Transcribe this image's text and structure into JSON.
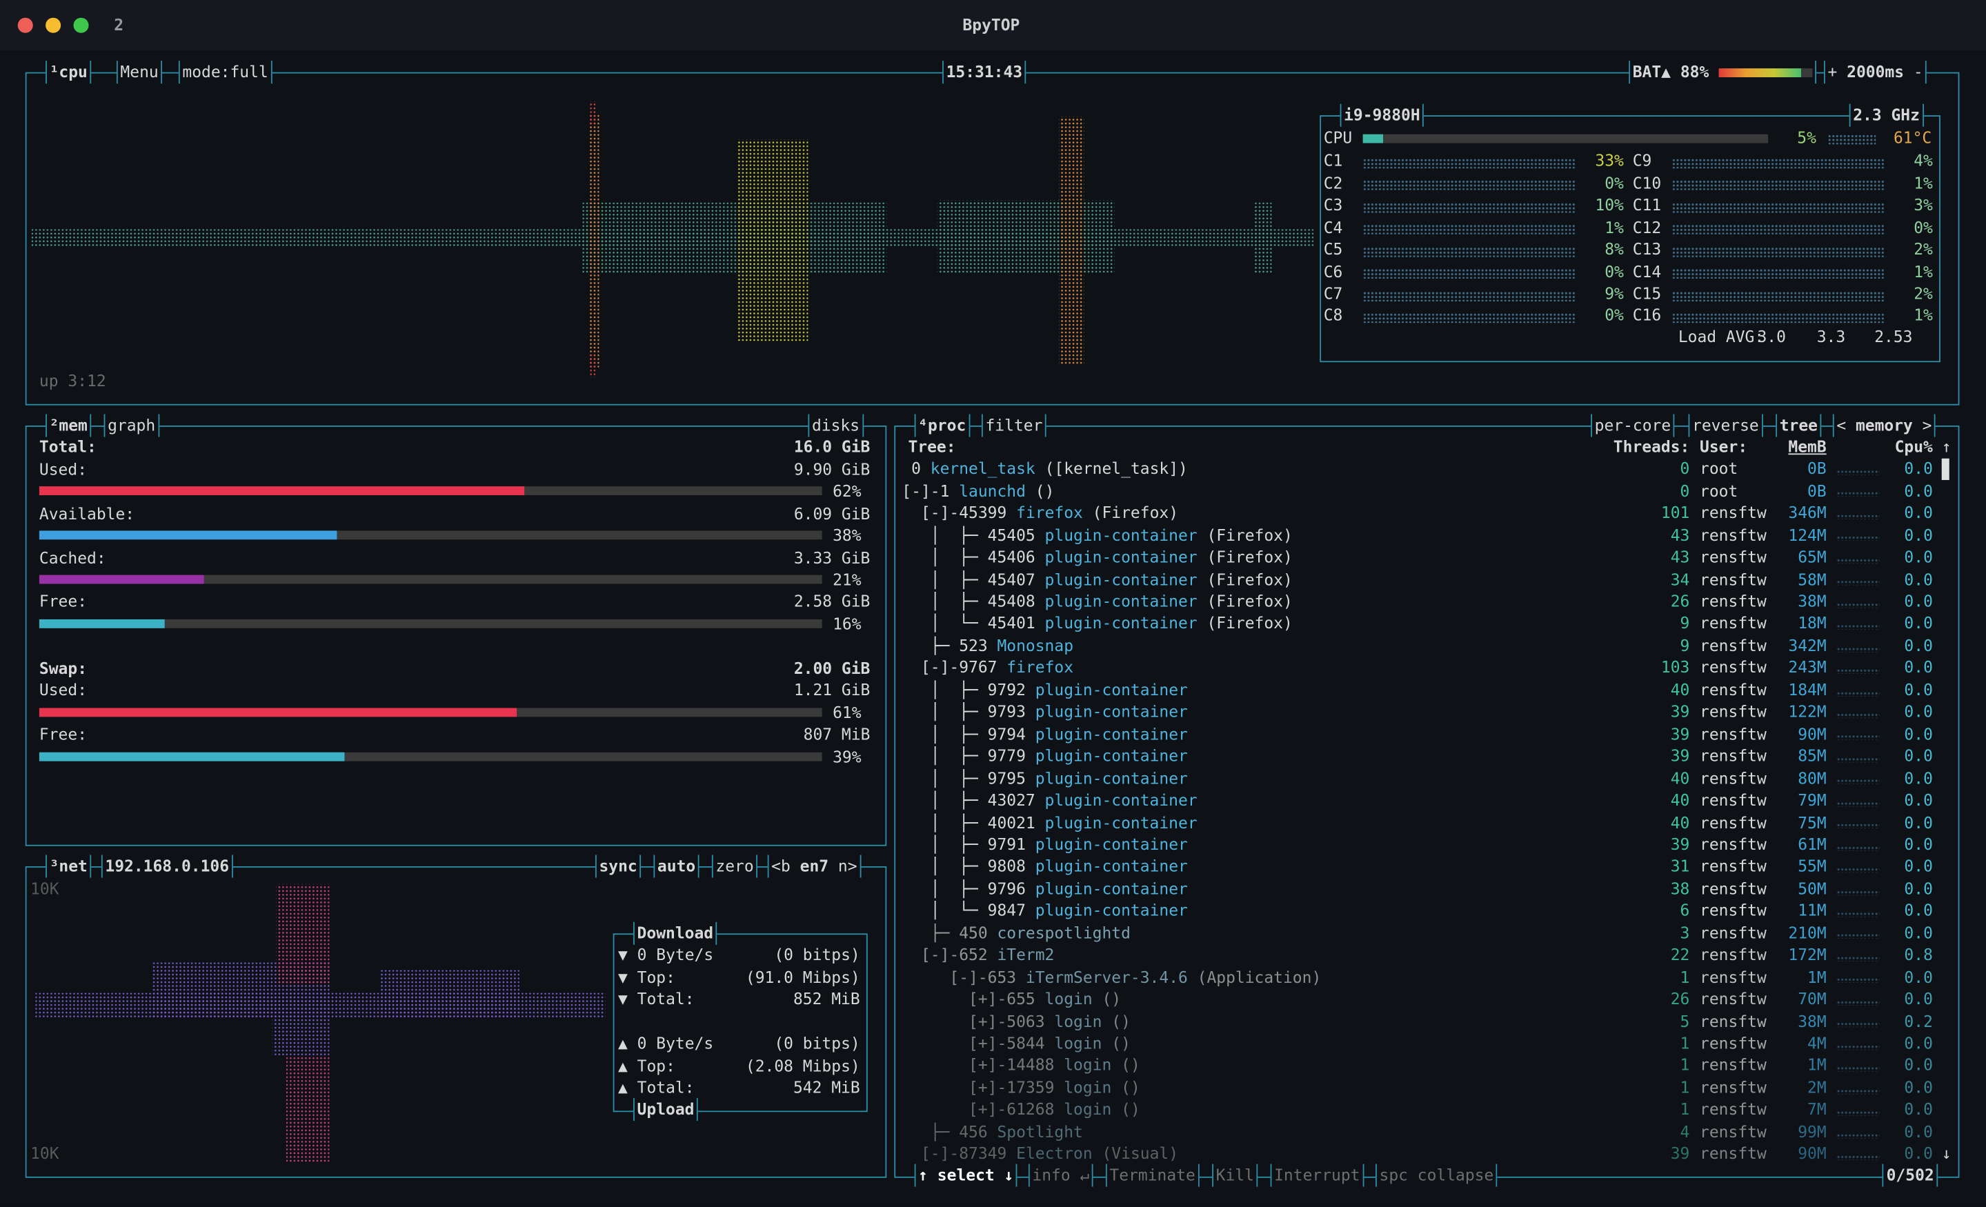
{
  "window": {
    "title": "BpyTOP",
    "tab": "2"
  },
  "cpu": {
    "labels": [
      "¹cpu",
      "Menu",
      "mode:full"
    ],
    "clock": "15:31:43",
    "battery": {
      "name": "BAT▲",
      "percent": {
        "value": 88,
        "label": "88%"
      }
    },
    "controls": [
      "+",
      "2000ms",
      "-"
    ],
    "uptime": "up 3:12",
    "model": "i9-9880H",
    "freq": "2.3 GHz",
    "total": {
      "name": "CPU",
      "percent": {
        "value": 5,
        "label": "5%"
      }
    },
    "temp": "61°C",
    "cores": [
      {
        "name": "C1",
        "percent": "33%"
      },
      {
        "name": "C2",
        "percent": "0%"
      },
      {
        "name": "C3",
        "percent": "10%"
      },
      {
        "name": "C4",
        "percent": "1%"
      },
      {
        "name": "C5",
        "percent": "8%"
      },
      {
        "name": "C6",
        "percent": "0%"
      },
      {
        "name": "C7",
        "percent": "9%"
      },
      {
        "name": "C8",
        "percent": "0%"
      },
      {
        "name": "C9",
        "percent": "4%"
      },
      {
        "name": "C10",
        "percent": "1%"
      },
      {
        "name": "C11",
        "percent": "3%"
      },
      {
        "name": "C12",
        "percent": "0%"
      },
      {
        "name": "C13",
        "percent": "2%"
      },
      {
        "name": "C14",
        "percent": "1%"
      },
      {
        "name": "C15",
        "percent": "2%"
      },
      {
        "name": "C16",
        "percent": "1%"
      }
    ],
    "load": {
      "label": "Load AVG:",
      "values": [
        "3.0",
        "3.3",
        "2.53"
      ]
    }
  },
  "mem": {
    "labels": [
      "²mem",
      "graph",
      "disks"
    ],
    "ram": {
      "total": {
        "name": "Total:",
        "value": "16.0 GiB"
      },
      "items": [
        {
          "name": "Used:",
          "value": "9.90 GiB",
          "percent": {
            "value": 62,
            "label": "62%"
          },
          "color": "#e8344f"
        },
        {
          "name": "Available:",
          "value": "6.09 GiB",
          "percent": {
            "value": 38,
            "label": "38%"
          },
          "color": "#3d9fe0"
        },
        {
          "name": "Cached:",
          "value": "3.33 GiB",
          "percent": {
            "value": 21,
            "label": "21%"
          },
          "color": "#9830a8"
        },
        {
          "name": "Free:",
          "value": "2.58 GiB",
          "percent": {
            "value": 16,
            "label": "16%"
          },
          "color": "#3bb2c6"
        }
      ]
    },
    "swap": {
      "total": {
        "name": "Swap:",
        "value": "2.00 GiB"
      },
      "items": [
        {
          "name": "Used:",
          "value": "1.21 GiB",
          "percent": {
            "value": 61,
            "label": "61%"
          },
          "color": "#e8344f"
        },
        {
          "name": "Free:",
          "value": "807 MiB",
          "percent": {
            "value": 39,
            "label": "39%"
          },
          "color": "#3bb2c6"
        }
      ]
    }
  },
  "net": {
    "labels": [
      "³net",
      "192.168.0.106"
    ],
    "options": [
      "sync",
      "auto",
      "zero"
    ],
    "interface": {
      "prev": "<b",
      "name": "en7",
      "next": "n>"
    },
    "scale_top": "10K",
    "scale_bottom": "10K",
    "download": {
      "title": "Download",
      "rows": [
        [
          "▼ 0 Byte/s",
          "(0 bitps)"
        ],
        [
          "▼ Top:",
          "(91.0 Mibps)"
        ],
        [
          "▼ Total:",
          "852 MiB"
        ]
      ]
    },
    "upload": {
      "title": "Upload",
      "rows": [
        [
          "▲ 0 Byte/s",
          "(0 bitps)"
        ],
        [
          "▲ Top:",
          "(2.08 Mibps)"
        ],
        [
          "▲ Total:",
          "542 MiB"
        ]
      ]
    }
  },
  "proc": {
    "labels": [
      "⁴proc",
      "filter"
    ],
    "options": [
      "per-core",
      "reverse",
      "tree"
    ],
    "sort": {
      "prev": "<",
      "name": "memory",
      "next": ">"
    },
    "columns": [
      "Tree:",
      "Threads:",
      "User:",
      "MemB",
      "Cpu%"
    ],
    "scroll_up": "↑",
    "scroll_down": "↓",
    "rows": [
      [
        " 0",
        "kernel_task",
        "([kernel_task])",
        "0",
        "root",
        "0B",
        "0.0"
      ],
      [
        "[-]-1",
        "launchd",
        "()",
        "0",
        "root",
        "0B",
        "0.0"
      ],
      [
        "  [-]-45399",
        "firefox",
        "(Firefox)",
        "101",
        "rensftw",
        "346M",
        "0.0"
      ],
      [
        "   │  ├─ 45405",
        "plugin-container",
        "(Firefox)",
        "43",
        "rensftw",
        "124M",
        "0.0"
      ],
      [
        "   │  ├─ 45406",
        "plugin-container",
        "(Firefox)",
        "43",
        "rensftw",
        "65M",
        "0.0"
      ],
      [
        "   │  ├─ 45407",
        "plugin-container",
        "(Firefox)",
        "34",
        "rensftw",
        "58M",
        "0.0"
      ],
      [
        "   │  ├─ 45408",
        "plugin-container",
        "(Firefox)",
        "26",
        "rensftw",
        "38M",
        "0.0"
      ],
      [
        "   │  └─ 45401",
        "plugin-container",
        "(Firefox)",
        "9",
        "rensftw",
        "18M",
        "0.0"
      ],
      [
        "   ├─ 523",
        "Monosnap",
        "",
        "9",
        "rensftw",
        "342M",
        "0.0"
      ],
      [
        "  [-]-9767",
        "firefox",
        "",
        "103",
        "rensftw",
        "243M",
        "0.0"
      ],
      [
        "   │  ├─ 9792",
        "plugin-container",
        "",
        "40",
        "rensftw",
        "184M",
        "0.0"
      ],
      [
        "   │  ├─ 9793",
        "plugin-container",
        "",
        "39",
        "rensftw",
        "122M",
        "0.0"
      ],
      [
        "   │  ├─ 9794",
        "plugin-container",
        "",
        "39",
        "rensftw",
        "90M",
        "0.0"
      ],
      [
        "   │  ├─ 9779",
        "plugin-container",
        "",
        "39",
        "rensftw",
        "85M",
        "0.0"
      ],
      [
        "   │  ├─ 9795",
        "plugin-container",
        "",
        "40",
        "rensftw",
        "80M",
        "0.0"
      ],
      [
        "   │  ├─ 43027",
        "plugin-container",
        "",
        "40",
        "rensftw",
        "79M",
        "0.0"
      ],
      [
        "   │  ├─ 40021",
        "plugin-container",
        "",
        "40",
        "rensftw",
        "75M",
        "0.0"
      ],
      [
        "   │  ├─ 9791",
        "plugin-container",
        "",
        "39",
        "rensftw",
        "61M",
        "0.0"
      ],
      [
        "   │  ├─ 9808",
        "plugin-container",
        "",
        "31",
        "rensftw",
        "55M",
        "0.0"
      ],
      [
        "   │  ├─ 9796",
        "plugin-container",
        "",
        "38",
        "rensftw",
        "50M",
        "0.0"
      ],
      [
        "   │  └─ 9847",
        "plugin-container",
        "",
        "6",
        "rensftw",
        "11M",
        "0.0"
      ],
      [
        "   ├─ 450",
        "corespotlightd",
        "",
        "3",
        "rensftw",
        "210M",
        "0.0"
      ],
      [
        "  [-]-652",
        "iTerm2",
        "",
        "22",
        "rensftw",
        "172M",
        "0.8"
      ],
      [
        "     [-]-653",
        "iTermServer-3.4.6",
        "(Application)",
        "1",
        "rensftw",
        "1M",
        "0.0"
      ],
      [
        "       [+]-655",
        "login",
        "()",
        "26",
        "rensftw",
        "70M",
        "0.0"
      ],
      [
        "       [+]-5063",
        "login",
        "()",
        "5",
        "rensftw",
        "38M",
        "0.2"
      ],
      [
        "       [+]-5844",
        "login",
        "()",
        "1",
        "rensftw",
        "4M",
        "0.0"
      ],
      [
        "       [+]-14488",
        "login",
        "()",
        "1",
        "rensftw",
        "1M",
        "0.0"
      ],
      [
        "       [+]-17359",
        "login",
        "()",
        "1",
        "rensftw",
        "2M",
        "0.0"
      ],
      [
        "       [+]-61268",
        "login",
        "()",
        "1",
        "rensftw",
        "7M",
        "0.0"
      ],
      [
        "   ├─ 456",
        "Spotlight",
        "",
        "4",
        "rensftw",
        "99M",
        "0.0"
      ],
      [
        "  [-]-87349",
        "Electron",
        "(Visual)",
        "39",
        "rensftw",
        "90M",
        "0.0"
      ]
    ],
    "footer": [
      "↑ select ↓",
      "info ↵",
      "Terminate",
      "Kill",
      "Interrupt",
      "spc collapse"
    ],
    "count": "0/502"
  }
}
